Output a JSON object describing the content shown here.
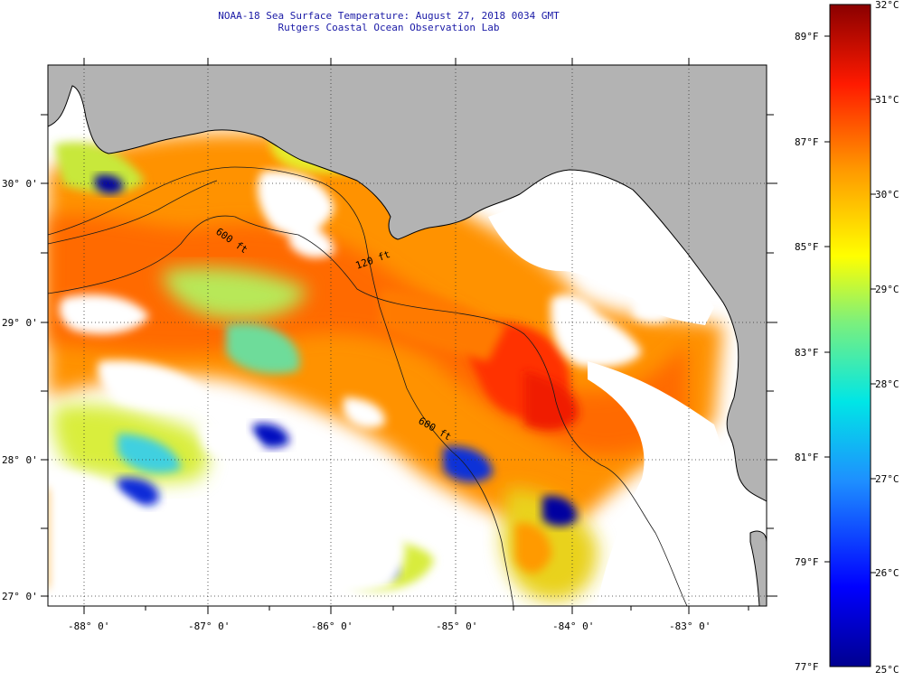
{
  "title": "NOAA-18 Sea Surface Temperature:  August 27, 2018 0034 GMT",
  "subtitle": "Rutgers Coastal Ocean Observation Lab",
  "map": {
    "lat_ticks": [
      "30° 0'",
      "29° 0'",
      "28° 0'",
      "27° 0'"
    ],
    "lon_ticks": [
      "-88° 0'",
      "-87° 0'",
      "-86° 0'",
      "-85° 0'",
      "-84° 0'",
      "-83° 0'"
    ],
    "isobaths": [
      "120 ft",
      "600 ft",
      "600 ft"
    ],
    "colors": {
      "land": "#b3b3b3",
      "cloud": "#ffffff",
      "coast": "#000000"
    }
  },
  "colorbar": {
    "celsius": [
      "32°C",
      "31°C",
      "30°C",
      "29°C",
      "28°C",
      "27°C",
      "26°C",
      "25°C"
    ],
    "fahrenheit": [
      "89°F",
      "87°F",
      "85°F",
      "83°F",
      "81°F",
      "79°F",
      "77°F"
    ],
    "range_c": [
      25,
      32
    ]
  }
}
